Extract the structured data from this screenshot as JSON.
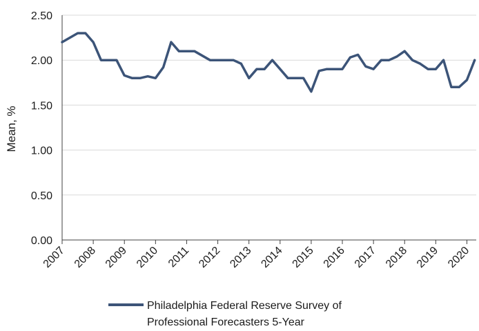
{
  "chart_data": {
    "type": "line",
    "title": "",
    "xlabel": "",
    "ylabel": "Mean, %",
    "ylim": [
      0,
      2.5
    ],
    "yticks": [
      "0.00",
      "0.50",
      "1.00",
      "1.50",
      "2.00",
      "2.50"
    ],
    "xticks": [
      "2007",
      "2008",
      "2009",
      "2010",
      "2011",
      "2012",
      "2013",
      "2014",
      "2015",
      "2016",
      "2017",
      "2018",
      "2019",
      "2020"
    ],
    "xlim": [
      2007.0,
      2020.3
    ],
    "grid": "horizontal",
    "legend_position": "bottom",
    "colors": {
      "series": "#3c5478",
      "grid": "#d9d9d9",
      "axis": "#404040"
    },
    "series": [
      {
        "name": "Philadelphia Federal Reserve Survey of Professional Forecasters 5-Year",
        "x": [
          2007.0,
          2007.25,
          2007.5,
          2007.75,
          2008.0,
          2008.25,
          2008.5,
          2008.75,
          2009.0,
          2009.25,
          2009.5,
          2009.75,
          2010.0,
          2010.25,
          2010.5,
          2010.75,
          2011.0,
          2011.25,
          2011.5,
          2011.75,
          2012.0,
          2012.25,
          2012.5,
          2012.75,
          2013.0,
          2013.25,
          2013.5,
          2013.75,
          2014.0,
          2014.25,
          2014.5,
          2014.75,
          2015.0,
          2015.25,
          2015.5,
          2015.75,
          2016.0,
          2016.25,
          2016.5,
          2016.75,
          2017.0,
          2017.25,
          2017.5,
          2017.75,
          2018.0,
          2018.25,
          2018.5,
          2018.75,
          2019.0,
          2019.25,
          2019.5,
          2019.75,
          2020.0,
          2020.25
        ],
        "values": [
          2.2,
          2.25,
          2.3,
          2.3,
          2.2,
          2.0,
          2.0,
          2.0,
          1.83,
          1.8,
          1.8,
          1.82,
          1.8,
          1.92,
          2.2,
          2.1,
          2.1,
          2.1,
          2.05,
          2.0,
          2.0,
          2.0,
          2.0,
          1.96,
          1.8,
          1.9,
          1.9,
          2.0,
          1.9,
          1.8,
          1.8,
          1.8,
          1.65,
          1.88,
          1.9,
          1.9,
          1.9,
          2.03,
          2.06,
          1.93,
          1.9,
          2.0,
          2.0,
          2.04,
          2.1,
          2.0,
          1.96,
          1.9,
          1.9,
          2.0,
          1.7,
          1.7,
          1.78,
          2.0
        ]
      }
    ]
  }
}
